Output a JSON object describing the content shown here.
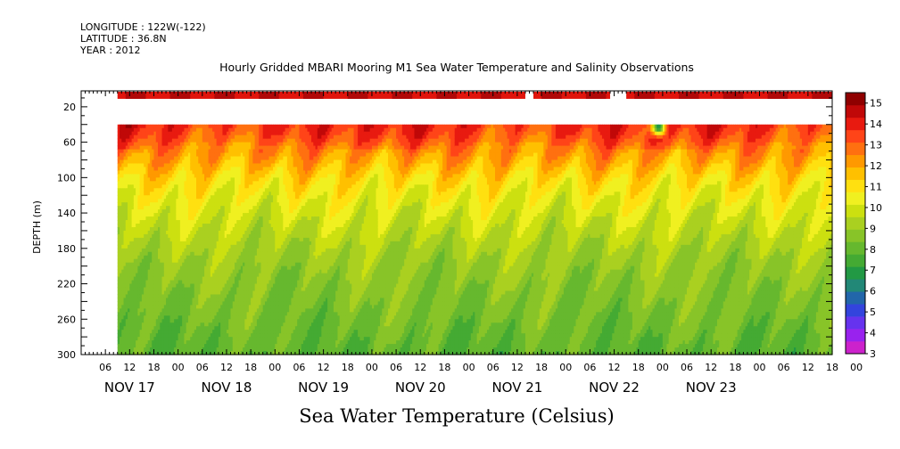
{
  "header": {
    "longitude": "LONGITUDE : 122W(-122)",
    "latitude": "LATITUDE : 36.8N",
    "year": "YEAR : 2012"
  },
  "chart_data": {
    "type": "heatmap",
    "title": "Hourly Gridded MBARI Mooring M1 Sea Water Temperature and Salinity Observations",
    "xlabel": "",
    "ylabel": "DEPTH (m)",
    "colorbar_title": "Sea Water Temperature (Celsius)",
    "x_hour_labels": [
      "06",
      "12",
      "18",
      "00",
      "06",
      "12",
      "18",
      "00",
      "06",
      "12",
      "18",
      "00",
      "06",
      "12",
      "18",
      "00",
      "06",
      "12",
      "18",
      "00",
      "06",
      "12",
      "18",
      "00",
      "06",
      "12",
      "18",
      "00",
      "06",
      "12",
      "18",
      "00"
    ],
    "x_day_labels": [
      "NOV 17",
      "NOV 18",
      "NOV 19",
      "NOV 20",
      "NOV 21",
      "NOV 22",
      "NOV 23"
    ],
    "x_range_hours": [
      0,
      186
    ],
    "data_start_hour": 9,
    "y_ticks": [
      20,
      60,
      100,
      140,
      180,
      220,
      260,
      300
    ],
    "ylim": [
      300,
      2
    ],
    "colorbar_levels": [
      3,
      4,
      5,
      6,
      7,
      8,
      9,
      10,
      11,
      12,
      13,
      14,
      15
    ],
    "colorbar_range": [
      3,
      15.5
    ],
    "colorbar_colors": [
      "#cc22cc",
      "#9922ee",
      "#6633ee",
      "#3344dd",
      "#2266aa",
      "#228877",
      "#229944",
      "#44aa33",
      "#66b82e",
      "#88c428",
      "#aad020",
      "#cce010",
      "#f0f020",
      "#ffe010",
      "#ffc000",
      "#ff9900",
      "#ff7010",
      "#ff4418",
      "#e81a10",
      "#c00808",
      "#8f0000"
    ],
    "depth_profile": [
      {
        "depth": 10,
        "temp": 14.4
      },
      {
        "depth": 40,
        "temp": 13.8
      },
      {
        "depth": 55,
        "temp": 13.3
      },
      {
        "depth": 70,
        "temp": 12.4
      },
      {
        "depth": 85,
        "temp": 11.8
      },
      {
        "depth": 100,
        "temp": 11.1
      },
      {
        "depth": 120,
        "temp": 10.5
      },
      {
        "depth": 140,
        "temp": 10.0
      },
      {
        "depth": 160,
        "temp": 9.6
      },
      {
        "depth": 180,
        "temp": 9.2
      },
      {
        "depth": 200,
        "temp": 8.9
      },
      {
        "depth": 220,
        "temp": 8.7
      },
      {
        "depth": 250,
        "temp": 8.4
      },
      {
        "depth": 280,
        "temp": 8.1
      },
      {
        "depth": 300,
        "temp": 7.9
      }
    ],
    "surface_segments": [
      {
        "start": 9,
        "end": 110
      },
      {
        "start": 112,
        "end": 131
      },
      {
        "start": 135,
        "end": 186
      }
    ],
    "anomaly": {
      "hour": 143,
      "depth_top": 40,
      "depth_bottom": 52,
      "min_temp": 5.5
    }
  }
}
